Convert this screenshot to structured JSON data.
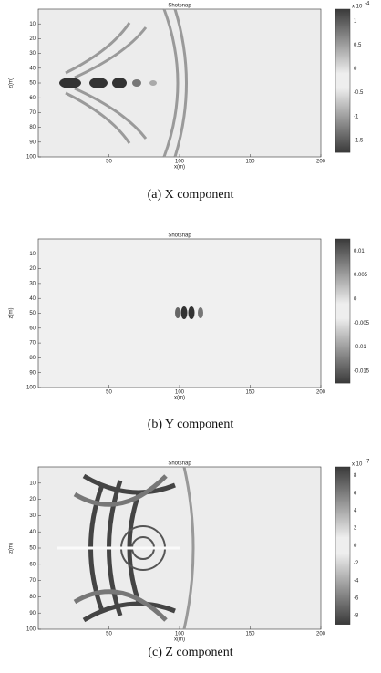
{
  "panels": [
    {
      "title": "Shotsnap",
      "y_label": "z(m)",
      "x_label": "x(m)",
      "y_ticks": [
        "10",
        "20",
        "30",
        "40",
        "50",
        "60",
        "70",
        "80",
        "90",
        "100"
      ],
      "x_ticks": [
        "50",
        "100",
        "150",
        "200"
      ],
      "colorbar_multiplier": "x 10",
      "colorbar_exponent": "-4",
      "colorbar_ticks": [
        "1",
        "0.5",
        "0",
        "-0.5",
        "-1",
        "-1.5"
      ],
      "caption": "(a) X component"
    },
    {
      "title": "Shotsnap",
      "y_label": "z(m)",
      "x_label": "x(m)",
      "y_ticks": [
        "10",
        "20",
        "30",
        "40",
        "50",
        "60",
        "70",
        "80",
        "90",
        "100"
      ],
      "x_ticks": [
        "50",
        "100",
        "150",
        "200"
      ],
      "colorbar_ticks": [
        "0.01",
        "0.005",
        "0",
        "-0.005",
        "-0.01",
        "-0.015"
      ],
      "caption": "(b) Y component"
    },
    {
      "title": "Shotsnap",
      "y_label": "z(m)",
      "x_label": "x(m)",
      "y_ticks": [
        "10",
        "20",
        "30",
        "40",
        "50",
        "60",
        "70",
        "80",
        "90",
        "100"
      ],
      "x_ticks": [
        "50",
        "100",
        "150",
        "200"
      ],
      "colorbar_multiplier": "x 10",
      "colorbar_exponent": "-7",
      "colorbar_ticks": [
        "8",
        "6",
        "4",
        "2",
        "0",
        "-2",
        "-4",
        "-6",
        "-8"
      ],
      "caption": "(c) Z component"
    }
  ]
}
